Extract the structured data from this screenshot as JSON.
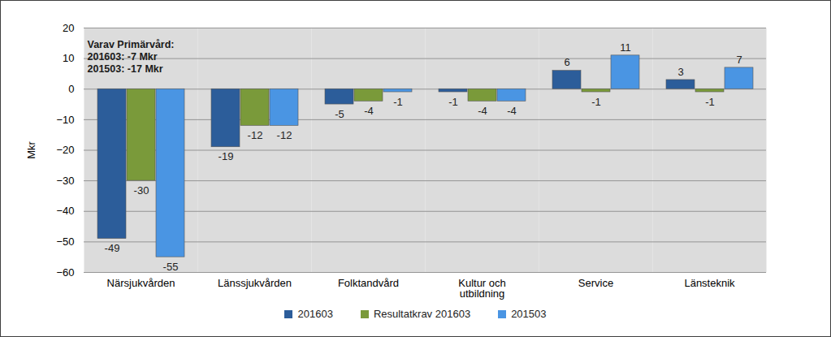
{
  "chart_data": {
    "type": "bar",
    "y_label": "Mkr",
    "categories": [
      "Närsjukvården",
      "Länssjukvården",
      "Folktandvård",
      "Kultur och utbildning",
      "Service",
      "Länsteknik"
    ],
    "series": [
      {
        "name": "201603",
        "color": "#2c5d9a",
        "values": [
          -49,
          -19,
          -5,
          -1,
          6,
          3
        ]
      },
      {
        "name": "Resultatkrav 201603",
        "color": "#7a9a3a",
        "values": [
          -30,
          -12,
          -4,
          -4,
          -1,
          -1
        ]
      },
      {
        "name": "201503",
        "color": "#4a95e3",
        "values": [
          -55,
          -12,
          -1,
          -4,
          11,
          7
        ]
      }
    ],
    "ylim": [
      -60,
      20
    ],
    "yticks": [
      -60,
      -50,
      -40,
      -30,
      -20,
      -10,
      0,
      10,
      20
    ],
    "grid": true,
    "legend": "bottom",
    "data_labels": true,
    "annotation": {
      "category": "Närsjukvården",
      "lines": [
        "Varav Primärvård:",
        "201603: -7 Mkr",
        "201503: -17 Mkr"
      ]
    }
  }
}
